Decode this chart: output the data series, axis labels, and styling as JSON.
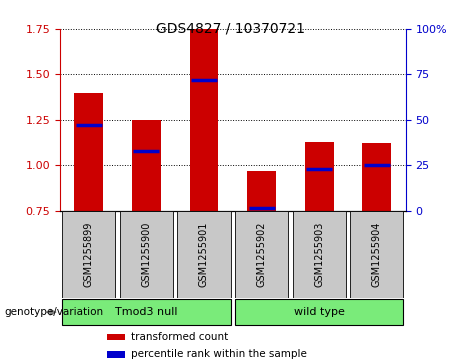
{
  "title": "GDS4827 / 10370721",
  "samples": [
    "GSM1255899",
    "GSM1255900",
    "GSM1255901",
    "GSM1255902",
    "GSM1255903",
    "GSM1255904"
  ],
  "bar_values": [
    1.4,
    1.25,
    1.75,
    0.97,
    1.13,
    1.12
  ],
  "percentile_values": [
    1.22,
    1.08,
    1.47,
    0.765,
    0.978,
    1.0
  ],
  "ylim_left": [
    0.75,
    1.75
  ],
  "ylim_right": [
    0,
    100
  ],
  "yticks_left": [
    0.75,
    1.0,
    1.25,
    1.5,
    1.75
  ],
  "yticks_right": [
    0,
    25,
    50,
    75,
    100
  ],
  "ytick_right_labels": [
    "0",
    "25",
    "50",
    "75",
    "100%"
  ],
  "groups": [
    {
      "label": "Tmod3 null",
      "start": 0,
      "end": 2,
      "color": "#7aeb7a"
    },
    {
      "label": "wild type",
      "start": 3,
      "end": 5,
      "color": "#7aeb7a"
    }
  ],
  "group_row_label": "genotype/variation",
  "bar_color": "#cc0000",
  "percentile_color": "#0000cc",
  "left_tick_color": "#cc0000",
  "right_tick_color": "#0000cc",
  "background_color": "#ffffff",
  "sample_bg_color": "#c8c8c8",
  "bar_width": 0.5,
  "legend_items": [
    {
      "color": "#cc0000",
      "label": "transformed count"
    },
    {
      "color": "#0000cc",
      "label": "percentile rank within the sample"
    }
  ]
}
